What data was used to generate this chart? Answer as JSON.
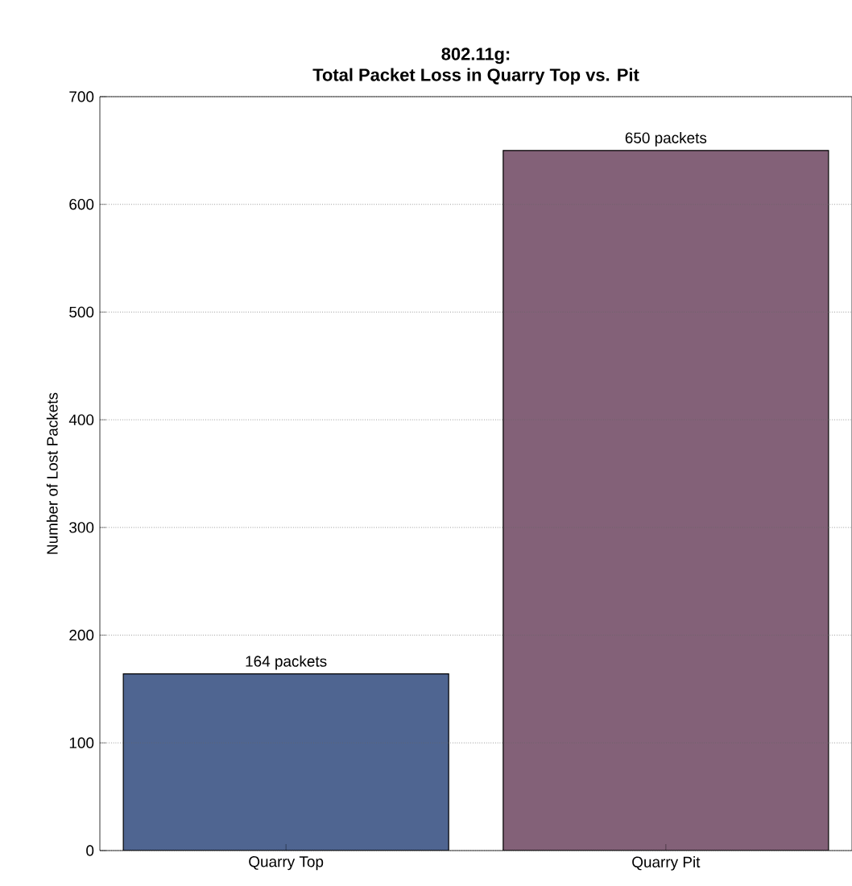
{
  "chart_data": {
    "type": "bar",
    "title": "802.11g:",
    "subtitle": "Total Packet Loss in Quarry Top vs. Pit",
    "ylabel": "Number of Lost Packets",
    "categories": [
      "Quarry Top",
      "Quarry Pit"
    ],
    "values": [
      164,
      650
    ],
    "colors": [
      "#4f6591",
      "#836178"
    ],
    "value_labels": [
      "164 packets",
      "650 packets"
    ],
    "ylim": [
      0,
      700
    ],
    "yticks": [
      0,
      100,
      200,
      300,
      400,
      500,
      600,
      700
    ],
    "grid": "y"
  }
}
